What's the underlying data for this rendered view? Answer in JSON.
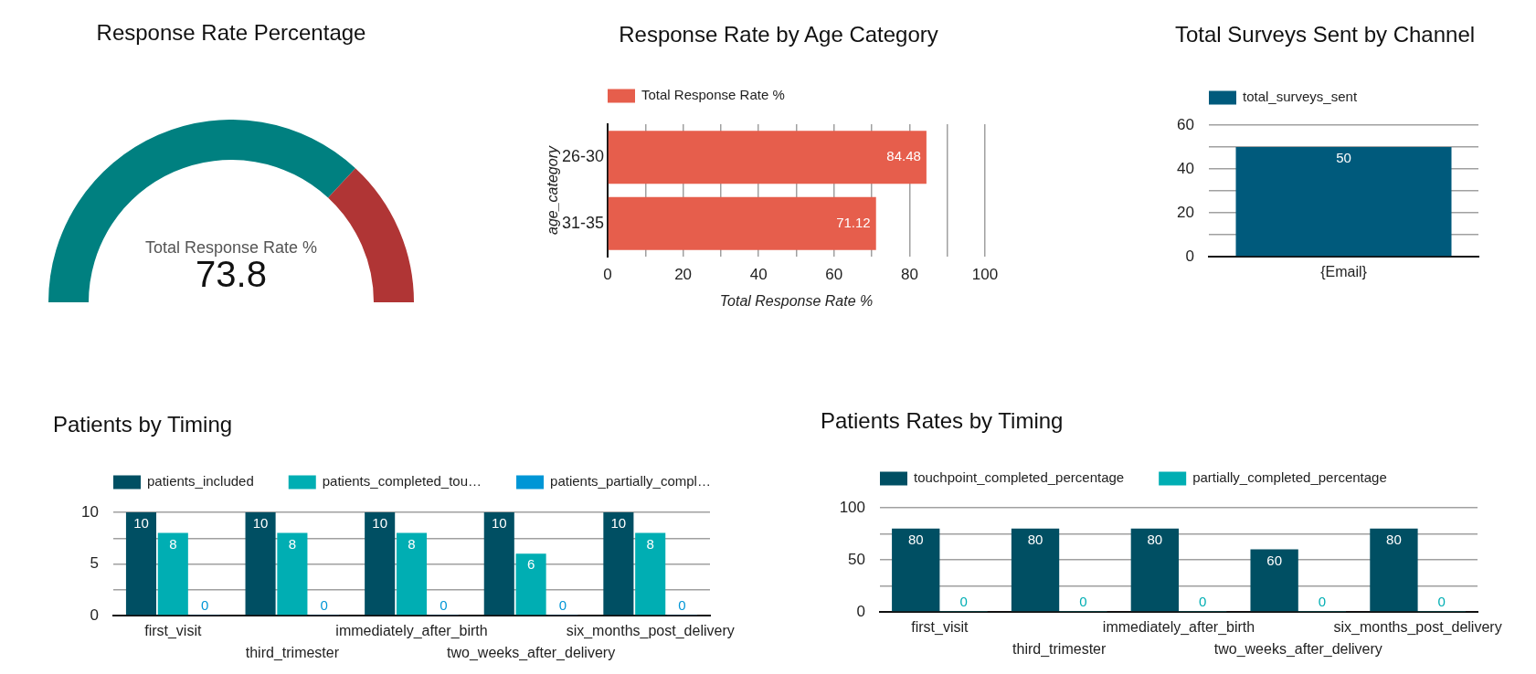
{
  "chart_data": [
    {
      "type": "donut",
      "title": "Response Rate Percentage",
      "categories": [
        "Total Response Rate %",
        null
      ],
      "values": [
        73.8,
        26.2
      ],
      "colors": [
        "#008080",
        "#b03535"
      ],
      "value_labels": [
        "73.8",
        null
      ]
    },
    {
      "type": "bar",
      "orientation": "horizontal",
      "title": "Response Rate by Age Category",
      "xlabel": "Total Response Rate %",
      "ylabel": "age_category",
      "categories": [
        "26-30",
        "31-35"
      ],
      "series": [
        {
          "name": "Total Response Rate %",
          "color": "#e65e4c",
          "values": [
            84.48,
            71.12
          ]
        }
      ],
      "xlim": [
        0,
        100
      ],
      "xticks": [
        0,
        {
          "value": 10,
          "label": null
        },
        20,
        {
          "value": 30,
          "label": null
        },
        40,
        {
          "value": 50,
          "label": null
        },
        60,
        {
          "value": 70,
          "label": null
        },
        80,
        {
          "value": 90,
          "label": null
        },
        100
      ],
      "grid": "x",
      "legend": "top left",
      "data_labels": true
    },
    {
      "type": "bar",
      "title": "Total Surveys Sent by Channel",
      "categories": [
        "{Email}"
      ],
      "series": [
        {
          "name": "total_surveys_sent",
          "color": "#005a7c",
          "values": [
            50
          ]
        }
      ],
      "ylim": [
        0,
        60
      ],
      "yticks": [
        0,
        {
          "value": 10,
          "label": null
        },
        20,
        {
          "value": 30,
          "label": null
        },
        40,
        {
          "value": 50,
          "label": null
        },
        60
      ],
      "grid": "y",
      "legend": "top left",
      "data_labels": true
    },
    {
      "type": "bar",
      "title": "Patients by Timing",
      "categories": [
        "first_visit",
        "third_trimester",
        "immediately_after_birth",
        "two_weeks_after_delivery",
        "six_months_post_delivery"
      ],
      "series": [
        {
          "name": "patients_included",
          "color": "#004f63",
          "values": [
            10,
            10,
            10,
            10,
            10
          ]
        },
        {
          "name": "patients_completed_tou…",
          "color": "#00aeb3",
          "values": [
            8,
            8,
            8,
            6,
            8
          ]
        },
        {
          "name": "patients_partially_compl…",
          "color": "#0096d6",
          "values": [
            0,
            0,
            0,
            0,
            0
          ]
        }
      ],
      "ylim": [
        0,
        10
      ],
      "yticks": [
        0,
        {
          "value": 2.5,
          "label": null
        },
        5,
        {
          "value": 7.5,
          "label": null
        },
        10
      ],
      "grid": "y",
      "legend": "top left",
      "data_labels": true
    },
    {
      "type": "bar",
      "title": "Patients Rates by Timing",
      "categories": [
        "first_visit",
        "third_trimester",
        "immediately_after_birth",
        "two_weeks_after_delivery",
        "six_months_post_delivery"
      ],
      "series": [
        {
          "name": "touchpoint_completed_percentage",
          "color": "#004f63",
          "values": [
            80,
            80,
            80,
            60,
            80
          ]
        },
        {
          "name": "partially_completed_percentage",
          "color": "#00aeb3",
          "values": [
            0,
            0,
            0,
            0,
            0
          ]
        }
      ],
      "ylim": [
        0,
        100
      ],
      "yticks": [
        0,
        {
          "value": 25,
          "label": null
        },
        50,
        {
          "value": 75,
          "label": null
        },
        100
      ],
      "grid": "y",
      "legend": "top left",
      "data_labels": true
    }
  ]
}
